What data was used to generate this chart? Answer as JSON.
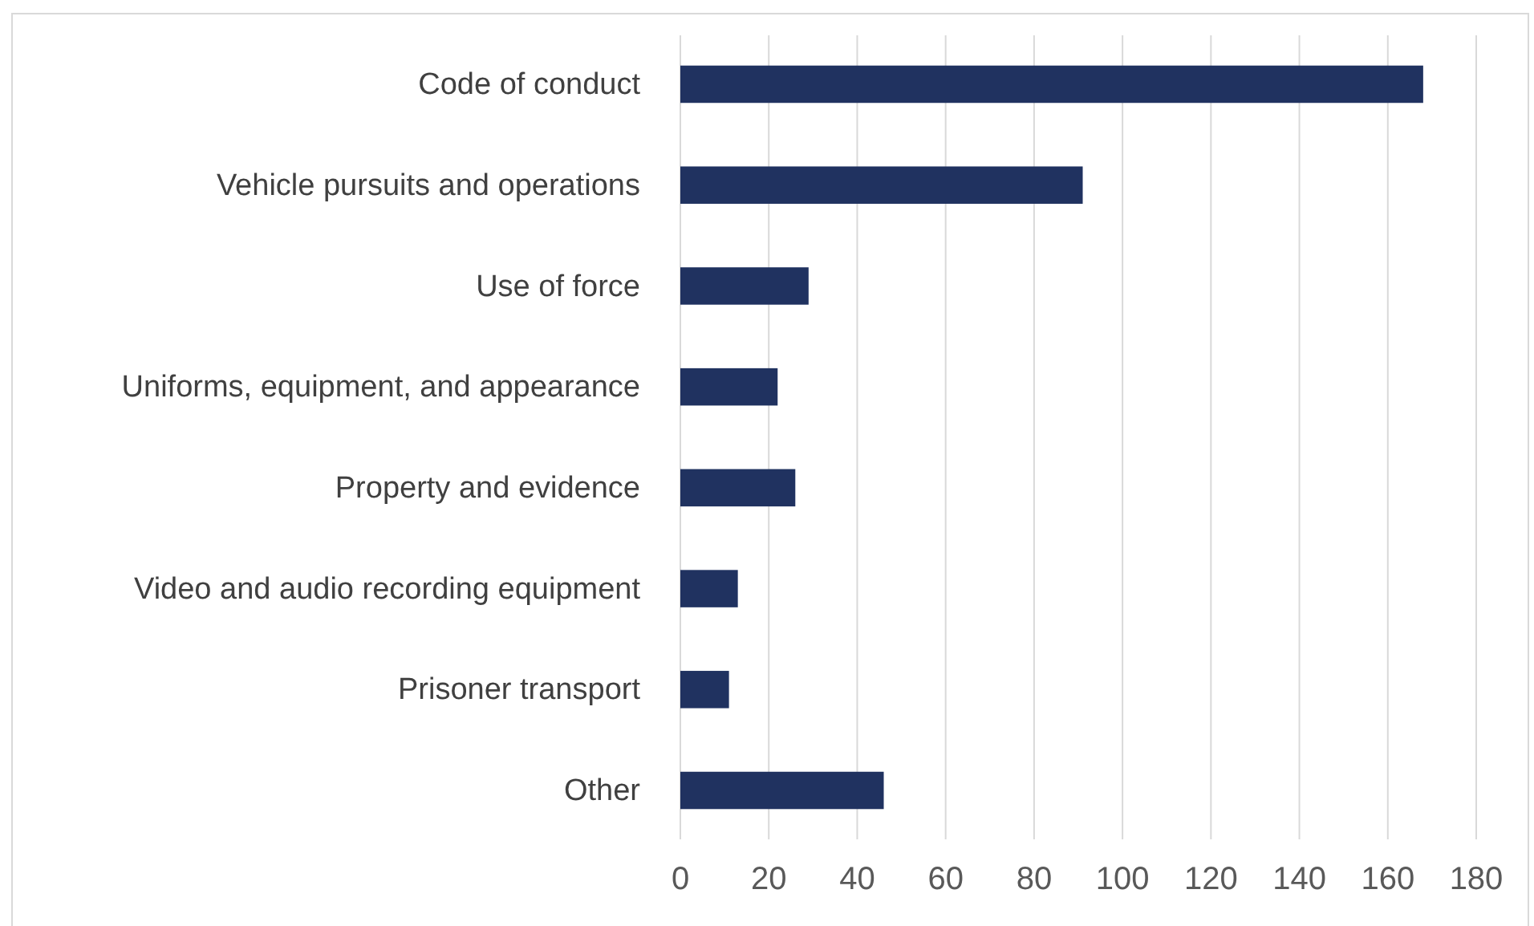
{
  "chart_data": {
    "type": "bar",
    "orientation": "horizontal",
    "categories": [
      "Code of conduct",
      "Vehicle pursuits and operations",
      "Use of force",
      "Uniforms, equipment, and appearance",
      "Property and evidence",
      "Video and audio recording equipment",
      "Prisoner transport",
      "Other"
    ],
    "values": [
      168,
      91,
      29,
      22,
      26,
      13,
      11,
      46
    ],
    "color": "#203260",
    "xlim": [
      0,
      180
    ],
    "xticks": [
      0,
      20,
      40,
      60,
      80,
      100,
      120,
      140,
      160,
      180
    ],
    "grid": "x"
  }
}
